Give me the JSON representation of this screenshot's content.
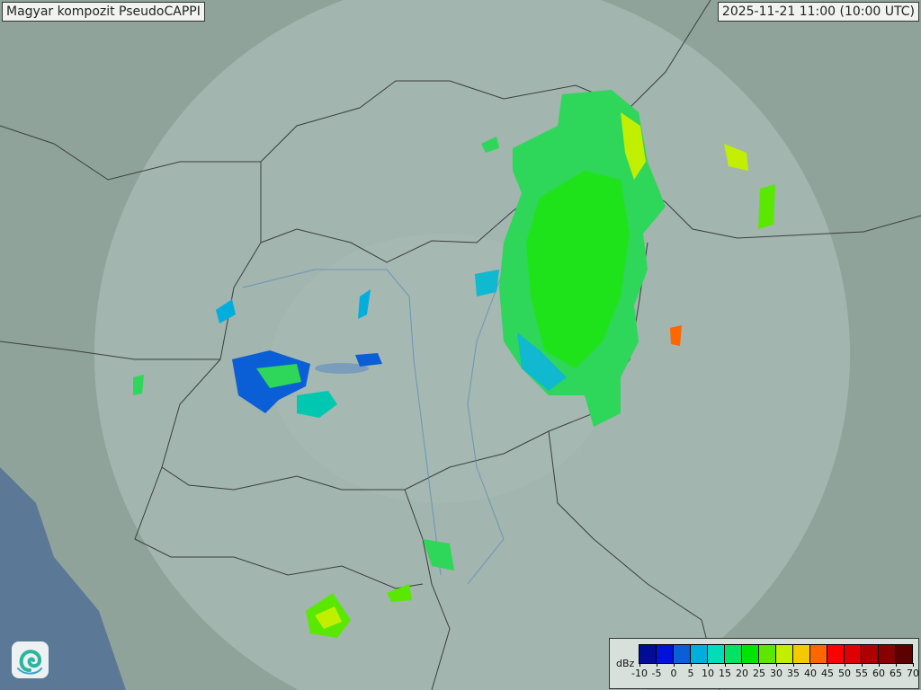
{
  "header": {
    "title": "Magyar kompozit  PseudoCAPPI",
    "timestamp": "2025-11-21 11:00 (10:00 UTC)"
  },
  "legend": {
    "unit": "dBz",
    "ticks": [
      "-10",
      "-5",
      "0",
      "5",
      "10",
      "15",
      "20",
      "25",
      "30",
      "35",
      "40",
      "45",
      "50",
      "55",
      "60",
      "65",
      "70"
    ],
    "colors": [
      "#000c94",
      "#0012d9",
      "#0a5fd6",
      "#00aede",
      "#00dcb8",
      "#00e265",
      "#00e400",
      "#5ae800",
      "#c2ef00",
      "#f5c900",
      "#ff6600",
      "#ff0000",
      "#dd0000",
      "#ae0000",
      "#880000",
      "#5e0000"
    ]
  },
  "map": {
    "background_color": "#8fa39b",
    "coverage_color": "#b9c9c3"
  },
  "logo": {
    "icon": "swirl-logo-icon"
  }
}
